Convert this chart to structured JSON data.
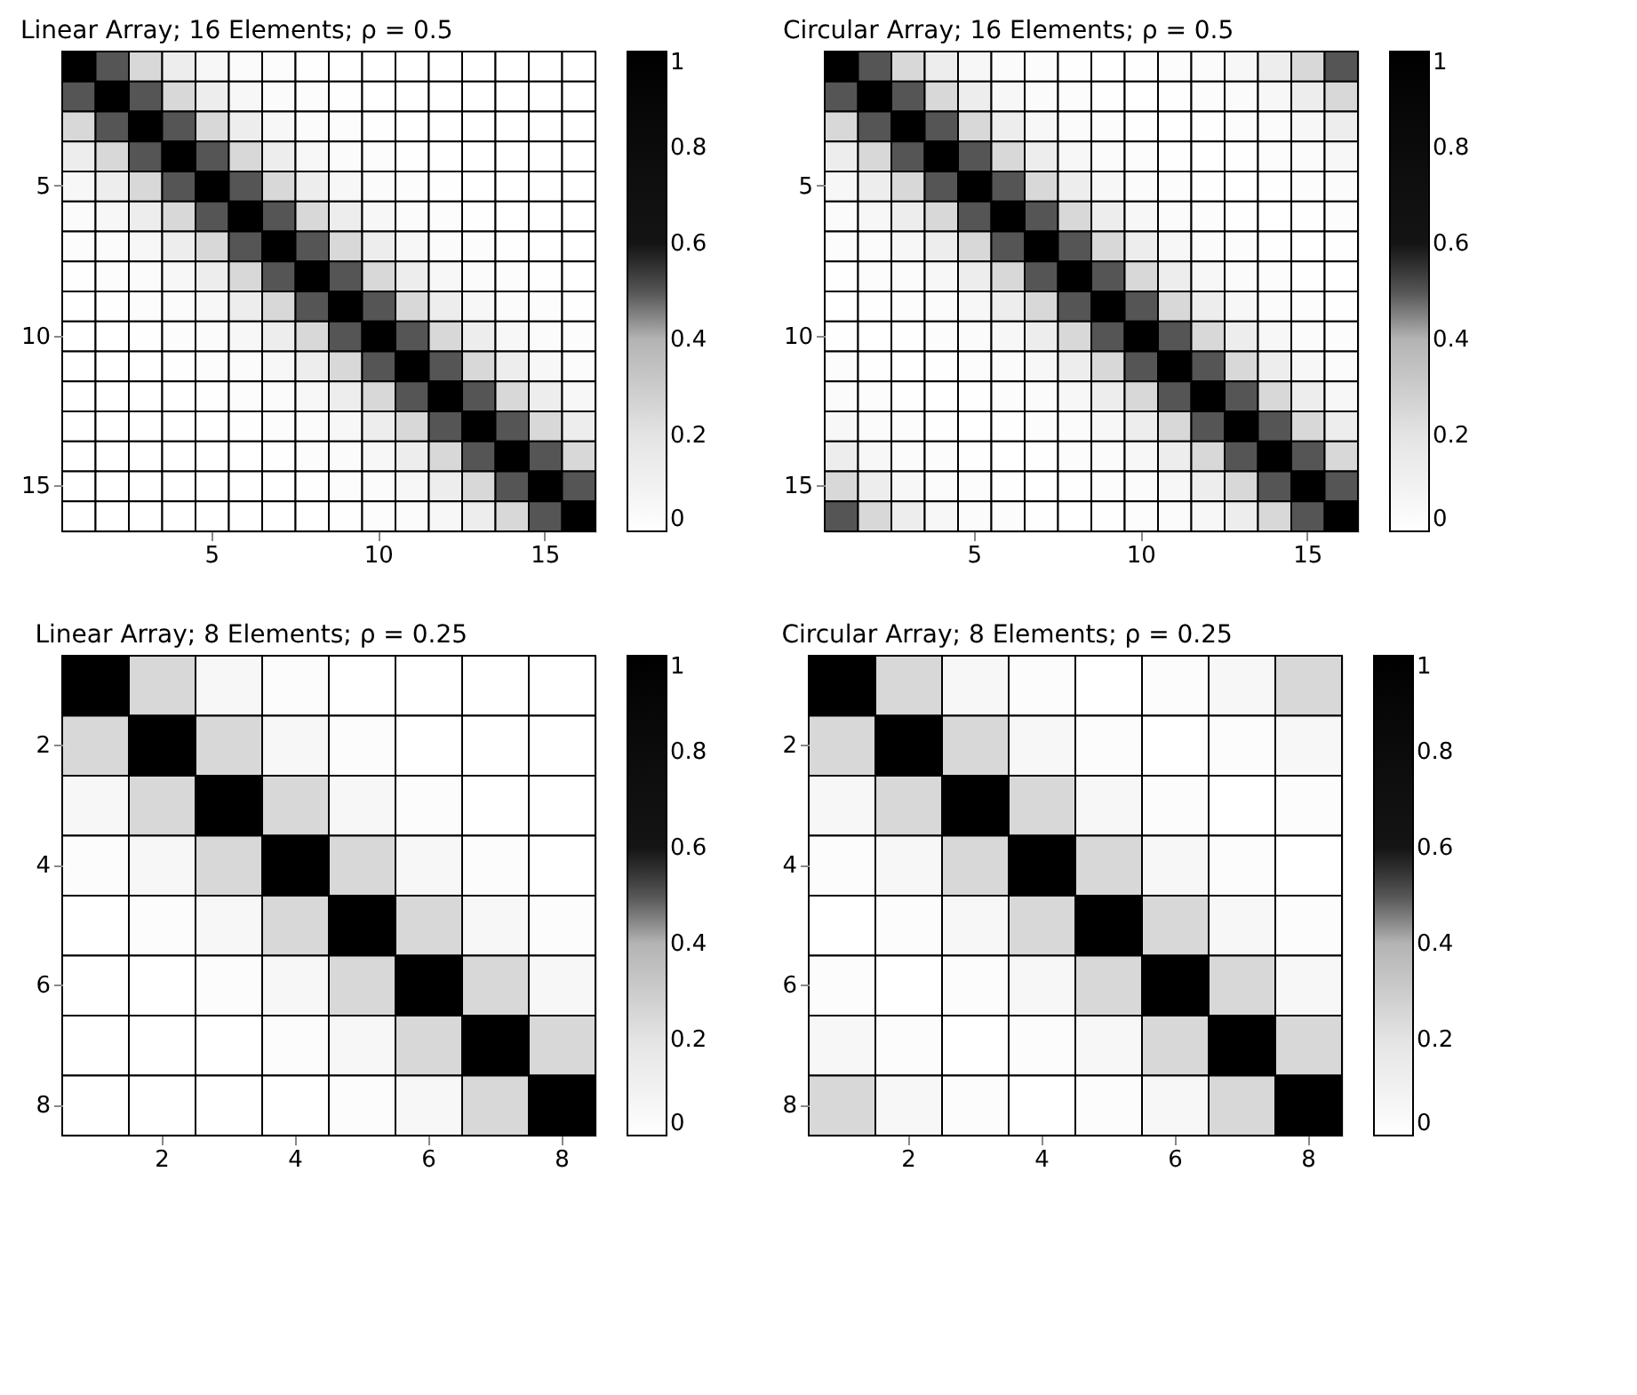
{
  "chart_data": [
    {
      "type": "heatmap",
      "title": "Linear Array; 16 Elements; ρ = 0.5",
      "categories": [
        null,
        null,
        null,
        null,
        "5",
        null,
        null,
        null,
        null,
        "10",
        null,
        null,
        null,
        null,
        "15",
        null
      ],
      "y_categories": [
        null,
        null,
        null,
        null,
        "5",
        null,
        null,
        null,
        null,
        "10",
        null,
        null,
        null,
        null,
        "15",
        null
      ],
      "clim": [
        0,
        1
      ],
      "cticks": [
        0,
        0.2,
        0.4,
        0.6,
        0.8,
        1
      ],
      "cells": [
        [
          1,
          0.5,
          0.25,
          0.13,
          0.06,
          0.03,
          0.02,
          0.01,
          0,
          0,
          0,
          0,
          0,
          0,
          0,
          0
        ],
        [
          0.5,
          1,
          0.5,
          0.25,
          0.13,
          0.06,
          0.03,
          0.02,
          0.01,
          0,
          0,
          0,
          0,
          0,
          0,
          0
        ],
        [
          0.25,
          0.5,
          1,
          0.5,
          0.25,
          0.13,
          0.06,
          0.03,
          0.02,
          0.01,
          0,
          0,
          0,
          0,
          0,
          0
        ],
        [
          0.13,
          0.25,
          0.5,
          1,
          0.5,
          0.25,
          0.13,
          0.06,
          0.03,
          0.02,
          0.01,
          0,
          0,
          0,
          0,
          0
        ],
        [
          0.06,
          0.13,
          0.25,
          0.5,
          1,
          0.5,
          0.25,
          0.13,
          0.06,
          0.03,
          0.02,
          0.01,
          0,
          0,
          0,
          0
        ],
        [
          0.03,
          0.06,
          0.13,
          0.25,
          0.5,
          1,
          0.5,
          0.25,
          0.13,
          0.06,
          0.03,
          0.02,
          0.01,
          0,
          0,
          0
        ],
        [
          0.02,
          0.03,
          0.06,
          0.13,
          0.25,
          0.5,
          1,
          0.5,
          0.25,
          0.13,
          0.06,
          0.03,
          0.02,
          0.01,
          0,
          0
        ],
        [
          0.01,
          0.02,
          0.03,
          0.06,
          0.13,
          0.25,
          0.5,
          1,
          0.5,
          0.25,
          0.13,
          0.06,
          0.03,
          0.02,
          0.01,
          0
        ],
        [
          0,
          0.01,
          0.02,
          0.03,
          0.06,
          0.13,
          0.25,
          0.5,
          1,
          0.5,
          0.25,
          0.13,
          0.06,
          0.03,
          0.02,
          0.01
        ],
        [
          0,
          0,
          0.01,
          0.02,
          0.03,
          0.06,
          0.13,
          0.25,
          0.5,
          1,
          0.5,
          0.25,
          0.13,
          0.06,
          0.03,
          0.02
        ],
        [
          0,
          0,
          0,
          0.01,
          0.02,
          0.03,
          0.06,
          0.13,
          0.25,
          0.5,
          1,
          0.5,
          0.25,
          0.13,
          0.06,
          0.03
        ],
        [
          0,
          0,
          0,
          0,
          0.01,
          0.02,
          0.03,
          0.06,
          0.13,
          0.25,
          0.5,
          1,
          0.5,
          0.25,
          0.13,
          0.06
        ],
        [
          0,
          0,
          0,
          0,
          0,
          0.01,
          0.02,
          0.03,
          0.06,
          0.13,
          0.25,
          0.5,
          1,
          0.5,
          0.25,
          0.13
        ],
        [
          0,
          0,
          0,
          0,
          0,
          0,
          0.01,
          0.02,
          0.03,
          0.06,
          0.13,
          0.25,
          0.5,
          1,
          0.5,
          0.25
        ],
        [
          0,
          0,
          0,
          0,
          0,
          0,
          0,
          0.01,
          0.02,
          0.03,
          0.06,
          0.13,
          0.25,
          0.5,
          1,
          0.5
        ],
        [
          0,
          0,
          0,
          0,
          0,
          0,
          0,
          0,
          0.01,
          0.02,
          0.03,
          0.06,
          0.13,
          0.25,
          0.5,
          1
        ]
      ]
    },
    {
      "type": "heatmap",
      "title": "Circular Array; 16 Elements; ρ = 0.5",
      "categories": [
        null,
        null,
        null,
        null,
        "5",
        null,
        null,
        null,
        null,
        "10",
        null,
        null,
        null,
        null,
        "15",
        null
      ],
      "y_categories": [
        null,
        null,
        null,
        null,
        "5",
        null,
        null,
        null,
        null,
        "10",
        null,
        null,
        null,
        null,
        "15",
        null
      ],
      "clim": [
        0,
        1
      ],
      "cticks": [
        0,
        0.2,
        0.4,
        0.6,
        0.8,
        1
      ],
      "cells": [
        [
          1,
          0.5,
          0.25,
          0.13,
          0.06,
          0.03,
          0.02,
          0.01,
          0,
          0.01,
          0.02,
          0.03,
          0.06,
          0.13,
          0.25,
          0.5
        ],
        [
          0.5,
          1,
          0.5,
          0.25,
          0.13,
          0.06,
          0.03,
          0.02,
          0.01,
          0,
          0.01,
          0.02,
          0.03,
          0.06,
          0.13,
          0.25
        ],
        [
          0.25,
          0.5,
          1,
          0.5,
          0.25,
          0.13,
          0.06,
          0.03,
          0.02,
          0.01,
          0,
          0.01,
          0.02,
          0.03,
          0.06,
          0.13
        ],
        [
          0.13,
          0.25,
          0.5,
          1,
          0.5,
          0.25,
          0.13,
          0.06,
          0.03,
          0.02,
          0.01,
          0,
          0.01,
          0.02,
          0.03,
          0.06
        ],
        [
          0.06,
          0.13,
          0.25,
          0.5,
          1,
          0.5,
          0.25,
          0.13,
          0.06,
          0.03,
          0.02,
          0.01,
          0,
          0.01,
          0.02,
          0.03
        ],
        [
          0.03,
          0.06,
          0.13,
          0.25,
          0.5,
          1,
          0.5,
          0.25,
          0.13,
          0.06,
          0.03,
          0.02,
          0.01,
          0,
          0.01,
          0.02
        ],
        [
          0.02,
          0.03,
          0.06,
          0.13,
          0.25,
          0.5,
          1,
          0.5,
          0.25,
          0.13,
          0.06,
          0.03,
          0.02,
          0.01,
          0,
          0.01
        ],
        [
          0.01,
          0.02,
          0.03,
          0.06,
          0.13,
          0.25,
          0.5,
          1,
          0.5,
          0.25,
          0.13,
          0.06,
          0.03,
          0.02,
          0.01,
          0
        ],
        [
          0,
          0.01,
          0.02,
          0.03,
          0.06,
          0.13,
          0.25,
          0.5,
          1,
          0.5,
          0.25,
          0.13,
          0.06,
          0.03,
          0.02,
          0.01
        ],
        [
          0.01,
          0,
          0.01,
          0.02,
          0.03,
          0.06,
          0.13,
          0.25,
          0.5,
          1,
          0.5,
          0.25,
          0.13,
          0.06,
          0.03,
          0.02
        ],
        [
          0.02,
          0.01,
          0,
          0.01,
          0.02,
          0.03,
          0.06,
          0.13,
          0.25,
          0.5,
          1,
          0.5,
          0.25,
          0.13,
          0.06,
          0.03
        ],
        [
          0.03,
          0.02,
          0.01,
          0,
          0.01,
          0.02,
          0.03,
          0.06,
          0.13,
          0.25,
          0.5,
          1,
          0.5,
          0.25,
          0.13,
          0.06
        ],
        [
          0.06,
          0.03,
          0.02,
          0.01,
          0,
          0.01,
          0.02,
          0.03,
          0.06,
          0.13,
          0.25,
          0.5,
          1,
          0.5,
          0.25,
          0.13
        ],
        [
          0.13,
          0.06,
          0.03,
          0.02,
          0.01,
          0,
          0.01,
          0.02,
          0.03,
          0.06,
          0.13,
          0.25,
          0.5,
          1,
          0.5,
          0.25
        ],
        [
          0.25,
          0.13,
          0.06,
          0.03,
          0.02,
          0.01,
          0,
          0.01,
          0.02,
          0.03,
          0.06,
          0.13,
          0.25,
          0.5,
          1,
          0.5
        ],
        [
          0.5,
          0.25,
          0.13,
          0.06,
          0.03,
          0.02,
          0.01,
          0,
          0.01,
          0.02,
          0.03,
          0.06,
          0.13,
          0.25,
          0.5,
          1
        ]
      ]
    },
    {
      "type": "heatmap",
      "title": "Linear Array; 8 Elements; ρ = 0.25",
      "categories": [
        null,
        "2",
        null,
        "4",
        null,
        "6",
        null,
        "8"
      ],
      "y_categories": [
        null,
        "2",
        null,
        "4",
        null,
        "6",
        null,
        "8"
      ],
      "clim": [
        0,
        1
      ],
      "cticks": [
        0,
        0.2,
        0.4,
        0.6,
        0.8,
        1
      ],
      "cells": [
        [
          1,
          0.25,
          0.06,
          0.02,
          0,
          0,
          0,
          0
        ],
        [
          0.25,
          1,
          0.25,
          0.06,
          0.02,
          0,
          0,
          0
        ],
        [
          0.06,
          0.25,
          1,
          0.25,
          0.06,
          0.02,
          0,
          0
        ],
        [
          0.02,
          0.06,
          0.25,
          1,
          0.25,
          0.06,
          0.02,
          0
        ],
        [
          0,
          0.02,
          0.06,
          0.25,
          1,
          0.25,
          0.06,
          0.02
        ],
        [
          0,
          0,
          0.02,
          0.06,
          0.25,
          1,
          0.25,
          0.06
        ],
        [
          0,
          0,
          0,
          0.02,
          0.06,
          0.25,
          1,
          0.25
        ],
        [
          0,
          0,
          0,
          0,
          0.02,
          0.06,
          0.25,
          1
        ]
      ]
    },
    {
      "type": "heatmap",
      "title": "Circular Array; 8 Elements; ρ = 0.25",
      "categories": [
        null,
        "2",
        null,
        "4",
        null,
        "6",
        null,
        "8"
      ],
      "y_categories": [
        null,
        "2",
        null,
        "4",
        null,
        "6",
        null,
        "8"
      ],
      "clim": [
        0,
        1
      ],
      "cticks": [
        0,
        0.2,
        0.4,
        0.6,
        0.8,
        1
      ],
      "cells": [
        [
          1,
          0.25,
          0.06,
          0.02,
          0,
          0.02,
          0.06,
          0.25
        ],
        [
          0.25,
          1,
          0.25,
          0.06,
          0.02,
          0,
          0.02,
          0.06
        ],
        [
          0.06,
          0.25,
          1,
          0.25,
          0.06,
          0.02,
          0,
          0.02
        ],
        [
          0.02,
          0.06,
          0.25,
          1,
          0.25,
          0.06,
          0.02,
          0
        ],
        [
          0,
          0.02,
          0.06,
          0.25,
          1,
          0.25,
          0.06,
          0.02
        ],
        [
          0.02,
          0,
          0.02,
          0.06,
          0.25,
          1,
          0.25,
          0.06
        ],
        [
          0.06,
          0.02,
          0,
          0.02,
          0.06,
          0.25,
          1,
          0.25
        ],
        [
          0.25,
          0.06,
          0.02,
          0,
          0.02,
          0.06,
          0.25,
          1
        ]
      ]
    }
  ]
}
